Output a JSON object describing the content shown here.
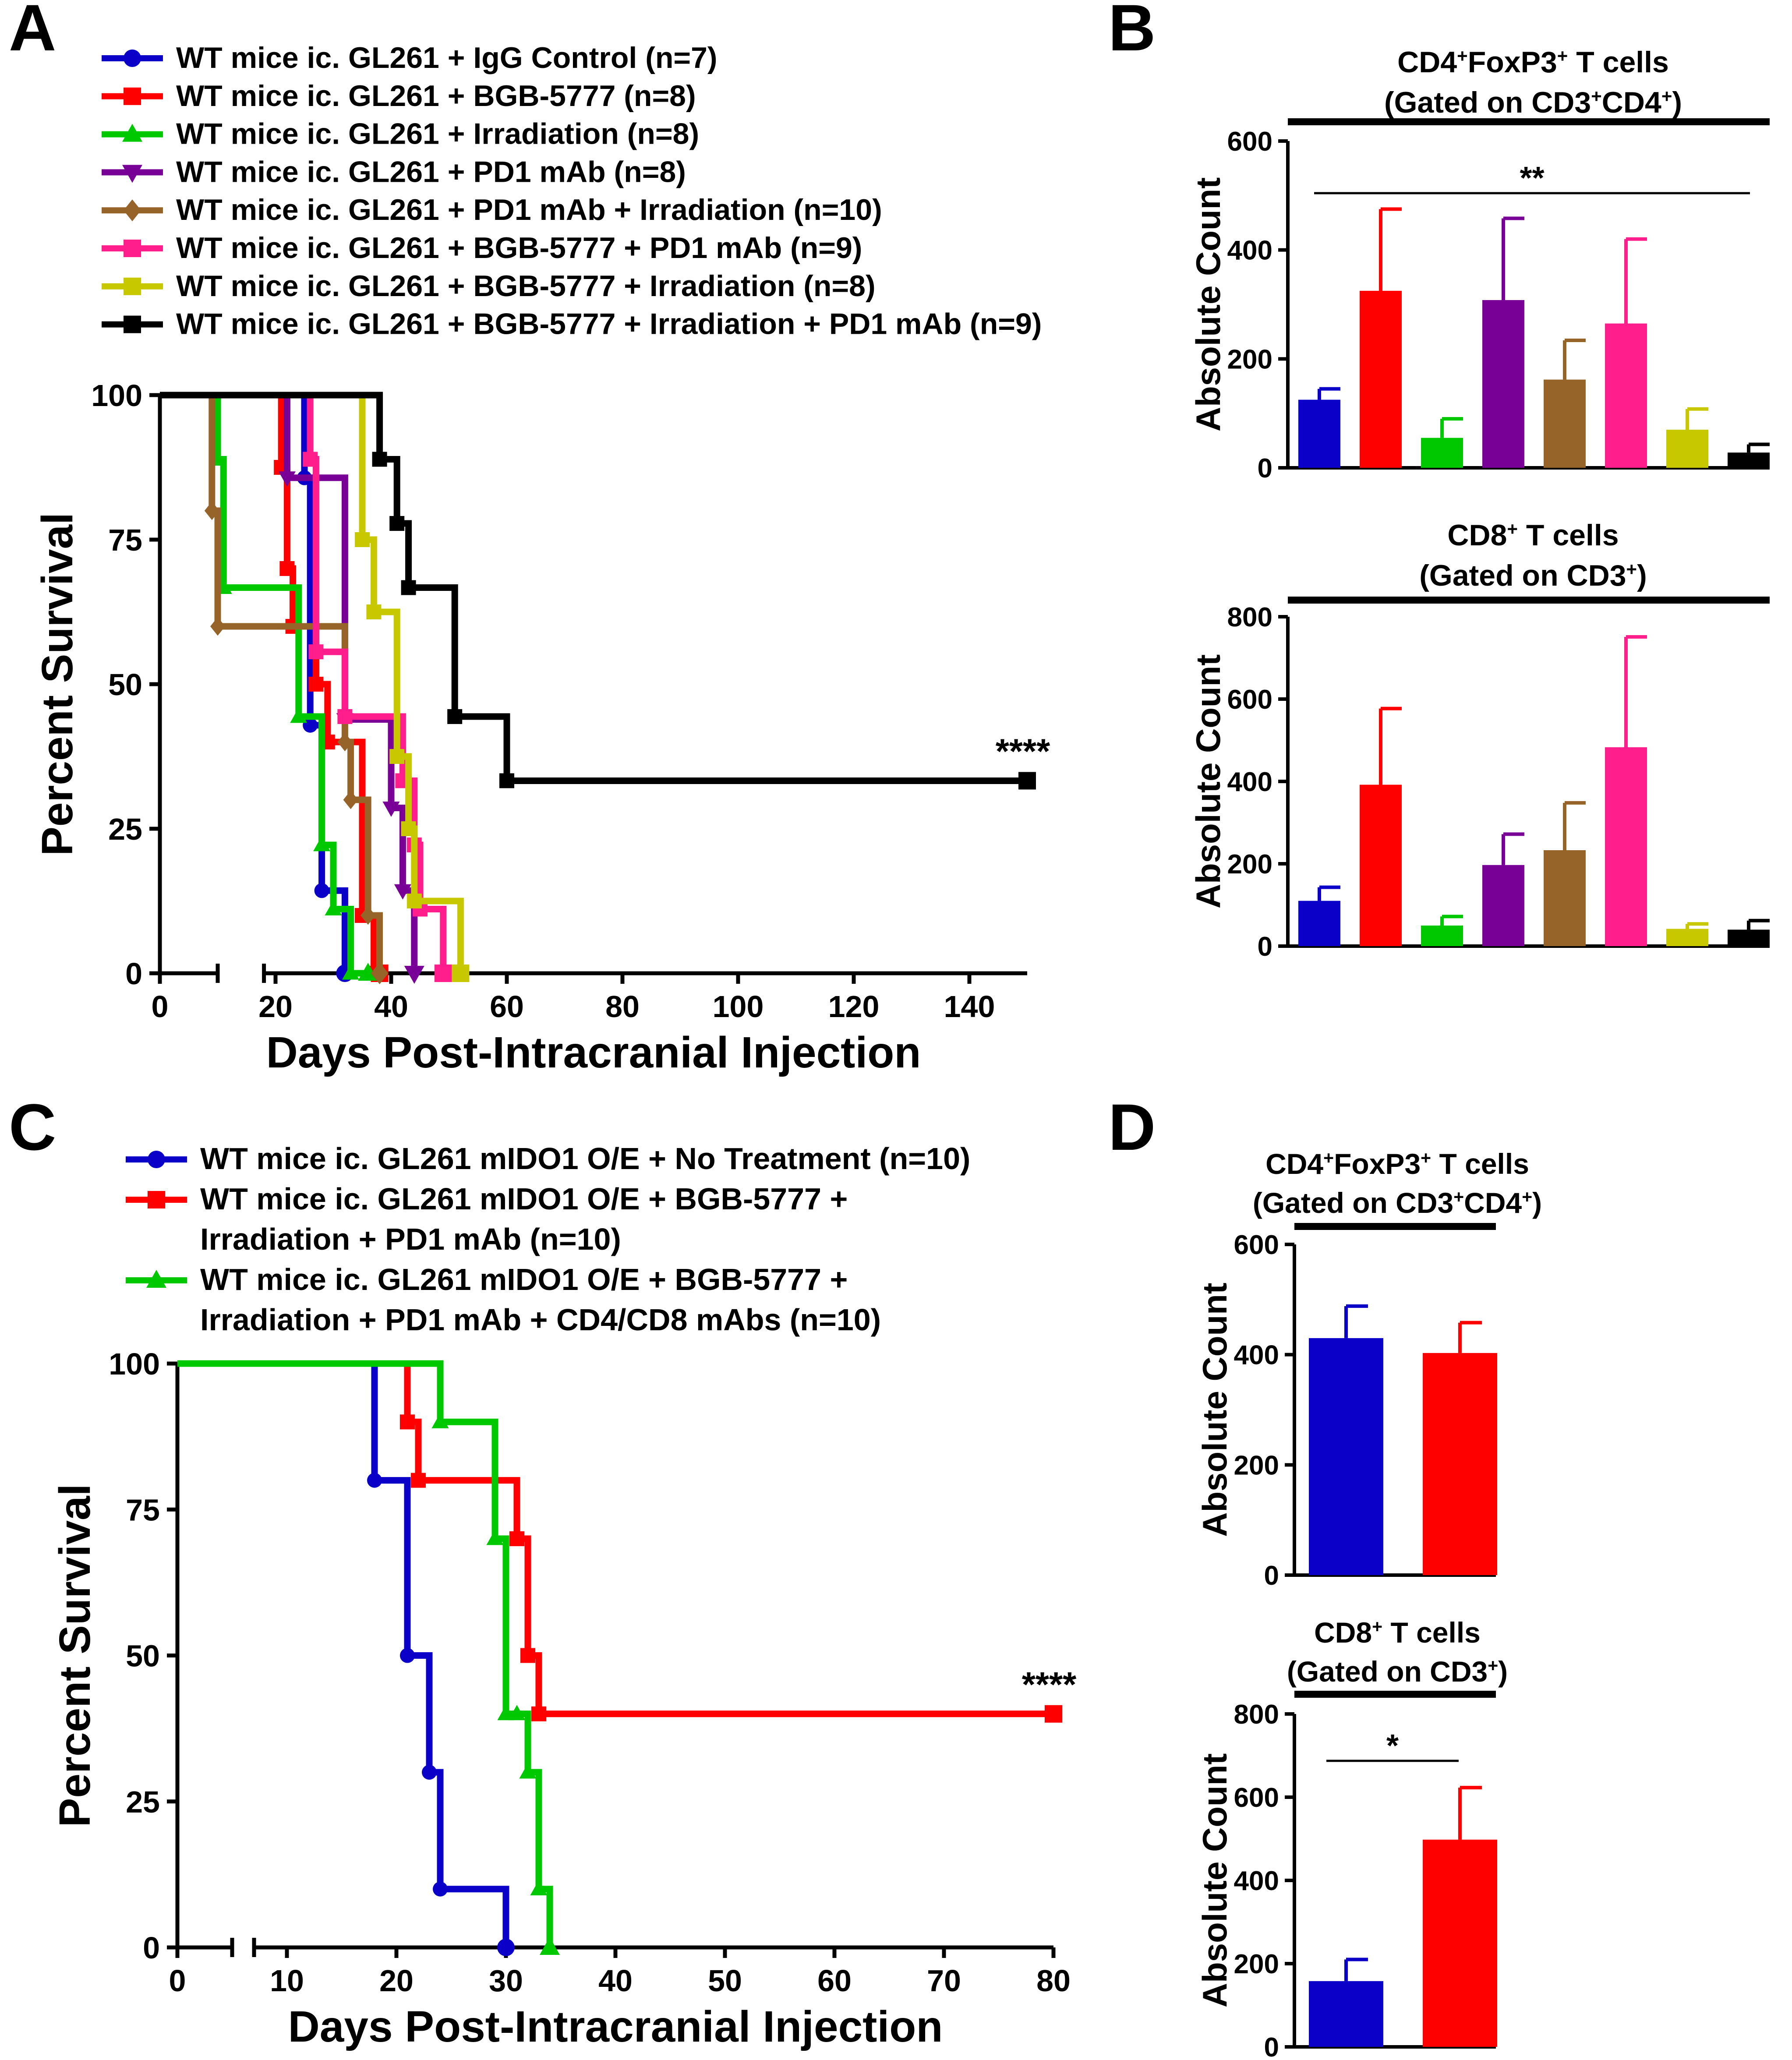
{
  "colors": {
    "blue": "#0a00c8",
    "red": "#ff0000",
    "green": "#00c800",
    "purple": "#780096",
    "brown": "#966428",
    "pink": "#ff1e8c",
    "olive": "#c8c800",
    "black": "#000000"
  },
  "chart_data": [
    {
      "panel_label": "A",
      "type": "line",
      "subtype": "kaplan-meier survival",
      "xlabel": "Days Post-Intracranial Injection",
      "ylabel": "Percent Survival",
      "xlim": [
        0,
        150
      ],
      "ylim": [
        0,
        100
      ],
      "x_axis_break": [
        10,
        18
      ],
      "xticks": [
        0,
        20,
        40,
        60,
        80,
        100,
        120,
        140
      ],
      "yticks": [
        0,
        25,
        50,
        75,
        100
      ],
      "legend_position": "top",
      "annotation": "****",
      "series": [
        {
          "name": "WT mice ic. GL261 + IgG Control (n=7)",
          "color": "blue",
          "marker": "circle",
          "steps": [
            [
              0,
              100
            ],
            [
              25,
              85.7
            ],
            [
              26,
              42.9
            ],
            [
              28,
              14.3
            ],
            [
              32,
              0
            ]
          ],
          "end": 32
        },
        {
          "name": "WT mice ic. GL261 + BGB-5777 (n=8)",
          "color": "red",
          "marker": "square",
          "steps": [
            [
              0,
              100
            ],
            [
              21,
              87.5
            ],
            [
              22,
              70
            ],
            [
              23,
              60
            ],
            [
              27,
              50
            ],
            [
              29,
              40
            ],
            [
              35,
              10
            ],
            [
              37,
              0
            ]
          ],
          "end": 38
        },
        {
          "name": "WT mice ic. GL261 + Irradiation (n=8)",
          "color": "green",
          "marker": "triangle-up",
          "steps": [
            [
              0,
              100
            ],
            [
              10,
              88.9
            ],
            [
              11,
              66.7
            ],
            [
              24,
              44.4
            ],
            [
              28,
              22.2
            ],
            [
              30,
              11.1
            ],
            [
              33,
              0
            ]
          ],
          "end": 36
        },
        {
          "name": "WT mice ic. GL261 + PD1 mAb (n=8)",
          "color": "purple",
          "marker": "triangle-down",
          "steps": [
            [
              0,
              100
            ],
            [
              22,
              85.7
            ],
            [
              32,
              43.9
            ],
            [
              40,
              28.6
            ],
            [
              42,
              14.3
            ],
            [
              44,
              0
            ]
          ],
          "end": 44
        },
        {
          "name": "WT mice ic. GL261 + PD1 mAb + Irradiation (n=10)",
          "color": "brown",
          "marker": "diamond",
          "steps": [
            [
              0,
              100
            ],
            [
              9,
              80
            ],
            [
              10,
              60
            ],
            [
              32,
              40
            ],
            [
              33,
              30
            ],
            [
              36,
              10
            ],
            [
              38,
              0
            ]
          ],
          "end": 38
        },
        {
          "name": "WT mice ic. GL261 + BGB-5777 + PD1 mAb (n=9)",
          "color": "pink",
          "marker": "square",
          "steps": [
            [
              0,
              100
            ],
            [
              26,
              88.9
            ],
            [
              27,
              55.6
            ],
            [
              32,
              44.4
            ],
            [
              42,
              33.3
            ],
            [
              44,
              22.2
            ],
            [
              45,
              11.1
            ],
            [
              49,
              0
            ]
          ],
          "end": 49
        },
        {
          "name": "WT mice ic. GL261 + BGB-5777 + Irradiation (n=8)",
          "color": "olive",
          "marker": "square",
          "steps": [
            [
              0,
              100
            ],
            [
              35,
              75
            ],
            [
              37,
              62.5
            ],
            [
              41,
              37.5
            ],
            [
              43,
              25
            ],
            [
              44,
              12.5
            ],
            [
              52,
              0
            ]
          ],
          "end": 52
        },
        {
          "name": "WT mice ic. GL261 + BGB-5777 + Irradiation + PD1 mAb (n=9)",
          "color": "black",
          "marker": "square",
          "steps": [
            [
              0,
              100
            ],
            [
              38,
              88.9
            ],
            [
              41,
              77.8
            ],
            [
              43,
              66.7
            ],
            [
              51,
              44.4
            ],
            [
              60,
              33.3
            ]
          ],
          "end": 150
        }
      ]
    },
    {
      "panel_label": "B",
      "type": "bar",
      "title_main": "CD4",
      "title_sup1": "+",
      "title_mid": "FoxP3",
      "title_sup2": "+",
      "title_end": " T cells",
      "gate_open": "(Gated on CD3",
      "gate_sup1": "+",
      "gate_mid": "CD4",
      "gate_sup2": "+",
      "gate_close": ")",
      "ylabel": "Absolute Count",
      "ylim": [
        0,
        600
      ],
      "yticks": [
        0,
        200,
        400,
        600
      ],
      "significance": "**",
      "values": [
        125,
        325,
        55,
        308,
        162,
        265,
        70,
        28
      ],
      "errors": [
        20,
        150,
        35,
        150,
        72,
        155,
        38,
        15
      ],
      "bar_colors": [
        "blue",
        "red",
        "green",
        "purple",
        "brown",
        "pink",
        "olive",
        "black"
      ]
    },
    {
      "panel_label": "B",
      "type": "bar",
      "title_main": "CD8",
      "title_sup1": "+",
      "title_end": " T cells",
      "gate_open": "(Gated on CD3",
      "gate_sup1": "+",
      "gate_close": ")",
      "ylabel": "Absolute Count",
      "ylim": [
        0,
        800
      ],
      "yticks": [
        0,
        200,
        400,
        600,
        800
      ],
      "values": [
        110,
        392,
        50,
        197,
        233,
        483,
        42,
        40
      ],
      "errors": [
        33,
        185,
        22,
        75,
        115,
        268,
        12,
        22
      ],
      "bar_colors": [
        "blue",
        "red",
        "green",
        "purple",
        "brown",
        "pink",
        "olive",
        "black"
      ]
    },
    {
      "panel_label": "C",
      "type": "line",
      "subtype": "kaplan-meier survival",
      "xlabel": "Days Post-Intracranial Injection",
      "ylabel": "Percent Survival",
      "xlim": [
        0,
        80
      ],
      "ylim": [
        0,
        100
      ],
      "x_axis_break": [
        5,
        7
      ],
      "xticks": [
        0,
        10,
        20,
        30,
        40,
        50,
        60,
        70,
        80
      ],
      "yticks": [
        0,
        25,
        50,
        75,
        100
      ],
      "legend_position": "top",
      "annotation": "****",
      "series": [
        {
          "name": "WT mice ic. GL261 mIDO1 O/E + No Treatment (n=10)",
          "color": "blue",
          "marker": "circle",
          "steps": [
            [
              0,
              100
            ],
            [
              18,
              80
            ],
            [
              21,
              50
            ],
            [
              23,
              30
            ],
            [
              24,
              10
            ],
            [
              30,
              0
            ]
          ],
          "end": 30
        },
        {
          "name_lines": [
            "WT mice ic. GL261 mIDO1 O/E + BGB-5777 +",
            "Irradiation + PD1 mAb (n=10)"
          ],
          "color": "red",
          "marker": "square",
          "steps": [
            [
              0,
              100
            ],
            [
              21,
              90
            ],
            [
              22,
              80
            ],
            [
              31,
              70
            ],
            [
              32,
              50
            ],
            [
              33,
              40
            ]
          ],
          "end": 80
        },
        {
          "name_lines": [
            "WT mice ic. GL261 mIDO1 O/E + BGB-5777 +",
            "Irradiation + PD1 mAb + CD4/CD8 mAbs (n=10)"
          ],
          "color": "green",
          "marker": "triangle-up",
          "steps": [
            [
              0,
              100
            ],
            [
              24,
              90
            ],
            [
              29,
              70
            ],
            [
              30,
              40
            ],
            [
              31,
              40
            ],
            [
              32,
              30
            ],
            [
              33,
              10
            ],
            [
              34,
              0
            ]
          ],
          "end": 34
        }
      ]
    },
    {
      "panel_label": "D",
      "type": "bar",
      "title_main": "CD4",
      "title_sup1": "+",
      "title_mid": "FoxP3",
      "title_sup2": "+",
      "title_end": " T cells",
      "gate_open": "(Gated on CD3",
      "gate_sup1": "+",
      "gate_mid": "CD4",
      "gate_sup2": "+",
      "gate_close": ")",
      "ylabel": "Absolute Count",
      "ylim": [
        0,
        600
      ],
      "yticks": [
        0,
        200,
        400,
        600
      ],
      "values": [
        430,
        403
      ],
      "errors": [
        58,
        55
      ],
      "bar_colors": [
        "blue",
        "red"
      ]
    },
    {
      "panel_label": "D",
      "type": "bar",
      "title_main": "CD8",
      "title_sup1": "+",
      "title_end": " T cells",
      "gate_open": "(Gated on CD3",
      "gate_sup1": "+",
      "gate_close": ")",
      "ylabel": "Absolute Count",
      "ylim": [
        0,
        800
      ],
      "yticks": [
        0,
        200,
        400,
        600,
        800
      ],
      "significance": "*",
      "values": [
        158,
        498
      ],
      "errors": [
        52,
        125
      ],
      "bar_colors": [
        "blue",
        "red"
      ]
    }
  ]
}
